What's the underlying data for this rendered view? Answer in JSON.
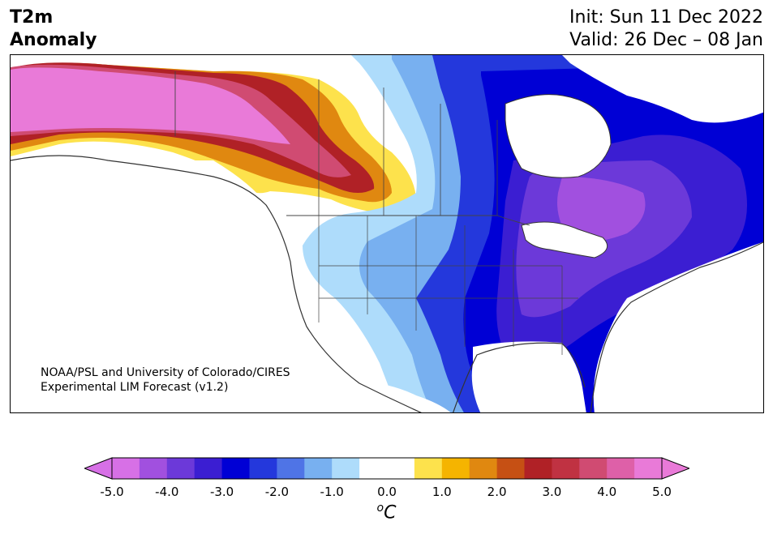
{
  "header": {
    "title_line1": "T2m",
    "title_line2": "Anomaly",
    "init_line": "Init: Sun 11 Dec 2022",
    "valid_line": "Valid: 26 Dec – 08 Jan"
  },
  "map": {
    "credit_line1": "NOAA/PSL and University of Colorado/CIRES",
    "credit_line2": "Experimental LIM Forecast (v1.2)",
    "region": "North America",
    "warm_anomaly_color": "#e070d8",
    "cold_anomaly_color": "#0000d6"
  },
  "colorbar": {
    "colors": [
      "#d770e6",
      "#a150df",
      "#6c39d9",
      "#3b1ed2",
      "#0000d5",
      "#2438dc",
      "#4f74e6",
      "#78b0f0",
      "#aedcfb",
      "#ffffff",
      "#ffffff",
      "#fde24c",
      "#f5b400",
      "#e08810",
      "#c65014",
      "#b02126",
      "#c03242",
      "#d04b72",
      "#de60a8",
      "#e97ad8"
    ],
    "min_color": "#d770e6",
    "max_color": "#e97ad8",
    "tick_labels": [
      "-5.0",
      "-4.0",
      "-3.0",
      "-2.0",
      "-1.0",
      "0.0",
      "1.0",
      "2.0",
      "3.0",
      "4.0",
      "5.0"
    ],
    "unit_sup": "o",
    "unit": "C"
  }
}
